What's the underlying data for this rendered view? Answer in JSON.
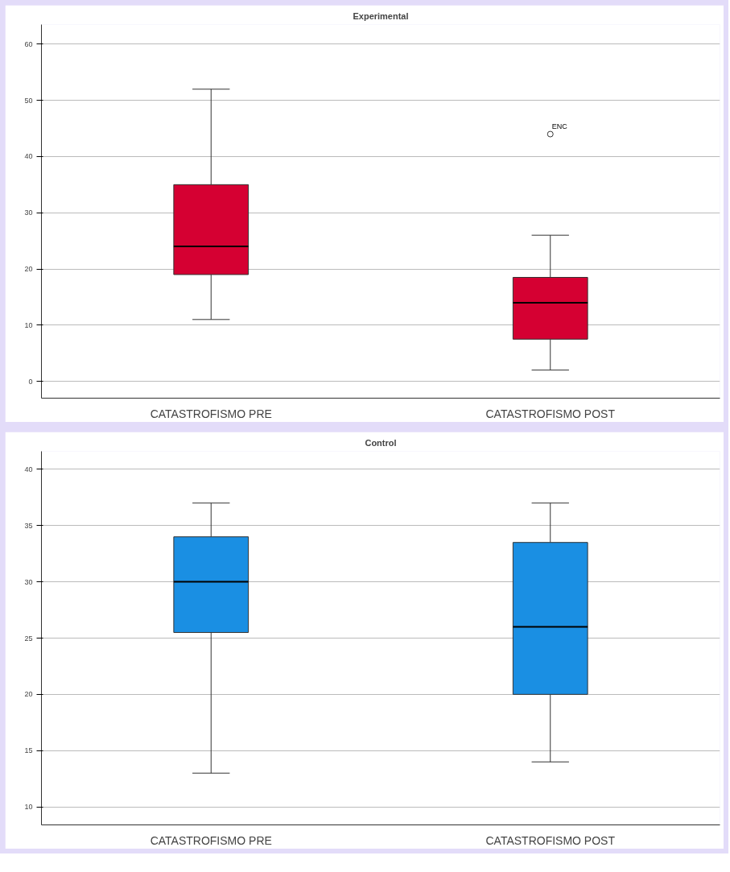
{
  "chart_data": [
    {
      "type": "box",
      "title": "Experimental",
      "categories": [
        "CATASTROFISMO PRE",
        "CATASTROFISMO POST"
      ],
      "ylim": [
        -3,
        63.5
      ],
      "yticks": [
        0,
        10,
        20,
        30,
        40,
        50,
        60
      ],
      "grid": "y",
      "color": "#d50032",
      "boxes": [
        {
          "low": 11,
          "q1": 19,
          "median": 24,
          "q3": 35,
          "high": 52
        },
        {
          "low": 2,
          "q1": 7.5,
          "median": 14,
          "q3": 18.5,
          "high": 26,
          "outliers": [
            44
          ]
        }
      ],
      "annotations": [
        "ENC"
      ]
    },
    {
      "type": "box",
      "title": "Control",
      "categories": [
        "CATASTROFISMO PRE",
        "CATASTROFISMO POST"
      ],
      "ylim": [
        8.4,
        41.6
      ],
      "yticks": [
        10,
        15,
        20,
        25,
        30,
        35,
        40
      ],
      "grid": "y",
      "color": "#1a8fe3",
      "boxes": [
        {
          "low": 13,
          "q1": 25.5,
          "median": 30,
          "q3": 34,
          "high": 37
        },
        {
          "low": 14,
          "q1": 20,
          "median": 26,
          "q3": 33.5,
          "high": 37
        }
      ]
    }
  ]
}
